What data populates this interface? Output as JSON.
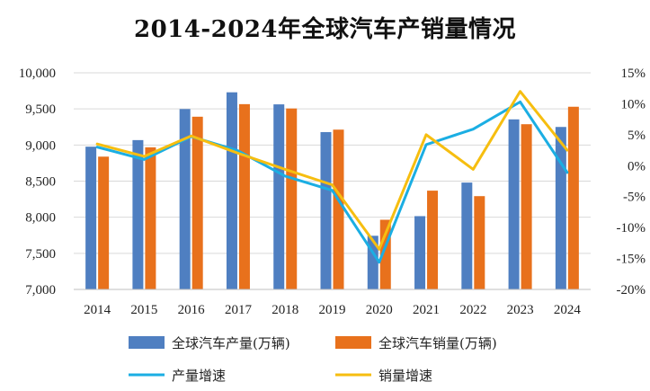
{
  "chart_data": {
    "type": "bar",
    "title": "2014-2024年全球汽车产销量情况",
    "categories": [
      "2014",
      "2015",
      "2016",
      "2017",
      "2018",
      "2019",
      "2020",
      "2021",
      "2022",
      "2023",
      "2024"
    ],
    "series": [
      {
        "name": "全球汽车产量(万辆)",
        "kind": "bar",
        "axis": "left",
        "color": "#4F7FC1",
        "values": [
          8977,
          9068,
          9498,
          9730,
          9563,
          9179,
          7743,
          8015,
          8480,
          9355,
          9250
        ]
      },
      {
        "name": "全球汽车销量(万辆)",
        "kind": "bar",
        "axis": "left",
        "color": "#E8711C",
        "values": [
          8839,
          8968,
          9392,
          9566,
          9506,
          9213,
          7965,
          8368,
          8292,
          9288,
          9530
        ]
      },
      {
        "name": "产量增速",
        "kind": "line",
        "axis": "right",
        "color": "#1BAEE3",
        "values": [
          3.0,
          1.0,
          4.7,
          2.4,
          -1.7,
          -4.0,
          -15.6,
          3.4,
          5.9,
          10.3,
          -1.1
        ]
      },
      {
        "name": "销量增速",
        "kind": "line",
        "axis": "right",
        "color": "#F6BE10",
        "values": [
          3.5,
          1.5,
          4.8,
          2.0,
          -0.6,
          -3.1,
          -13.5,
          5.0,
          -0.6,
          12.0,
          2.5
        ]
      }
    ],
    "ylim_left": [
      7000,
      10000
    ],
    "ylim_right": [
      -20,
      15
    ],
    "yticks_left": [
      "7,000",
      "7,500",
      "8,000",
      "8,500",
      "9,000",
      "9,500",
      "10,000"
    ],
    "yticks_right": [
      "-20%",
      "-15%",
      "-10%",
      "-5%",
      "0%",
      "5%",
      "10%",
      "15%"
    ],
    "gridlines": true,
    "legend_position": "bottom"
  }
}
